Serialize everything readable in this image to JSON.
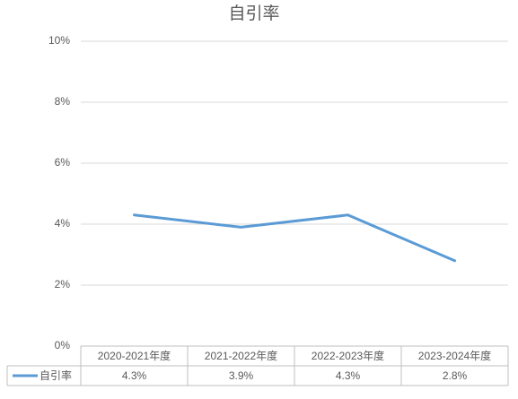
{
  "chart_data": {
    "type": "line",
    "title": "自引率",
    "categories": [
      "2020-2021年度",
      "2021-2022年度",
      "2022-2023年度",
      "2023-2024年度"
    ],
    "series": [
      {
        "name": "自引率",
        "color": "#5b9bd5",
        "values": [
          4.3,
          3.9,
          4.3,
          2.8
        ],
        "value_labels": [
          "4.3%",
          "3.9%",
          "4.3%",
          "2.8%"
        ]
      }
    ],
    "ylim": [
      0,
      10
    ],
    "yticks": [
      {
        "value": 0,
        "label": "0%"
      },
      {
        "value": 2,
        "label": "2%"
      },
      {
        "value": 4,
        "label": "4%"
      },
      {
        "value": 6,
        "label": "6%"
      },
      {
        "value": 8,
        "label": "8%"
      },
      {
        "value": 10,
        "label": "10%"
      }
    ],
    "grid": true,
    "legend": "bottom-left"
  }
}
